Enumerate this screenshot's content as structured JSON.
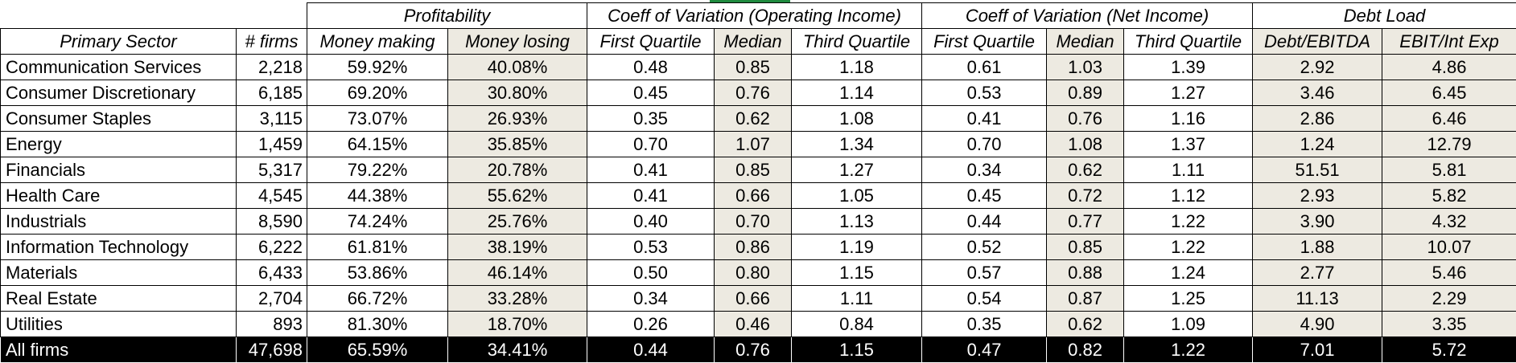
{
  "groups": {
    "profitability": "Profitability",
    "cov_operating": "Coeff of Variation (Operating Income)",
    "cov_net": "Coeff of Variation (Net Income)",
    "debt": "Debt Load"
  },
  "headers": {
    "sector": "Primary Sector",
    "firms": "# firms",
    "money_making": "Money making",
    "money_losing": "Money losing",
    "oi_q1": "First Quartile",
    "oi_median": "Median",
    "oi_q3": "Third Quartile",
    "ni_q1": "First Quartile",
    "ni_median": "Median",
    "ni_q3": "Third Quartile",
    "debt_ebitda": "Debt/EBITDA",
    "ebit_int": "EBIT/Int Exp"
  },
  "rows": [
    {
      "sector": "Communication Services",
      "firms": "2,218",
      "making": "59.92%",
      "losing": "40.08%",
      "oi_q1": "0.48",
      "oi_med": "0.85",
      "oi_q3": "1.18",
      "ni_q1": "0.61",
      "ni_med": "1.03",
      "ni_q3": "1.39",
      "debt_ebitda": "2.92",
      "ebit_int": "4.86"
    },
    {
      "sector": "Consumer Discretionary",
      "firms": "6,185",
      "making": "69.20%",
      "losing": "30.80%",
      "oi_q1": "0.45",
      "oi_med": "0.76",
      "oi_q3": "1.14",
      "ni_q1": "0.53",
      "ni_med": "0.89",
      "ni_q3": "1.27",
      "debt_ebitda": "3.46",
      "ebit_int": "6.45"
    },
    {
      "sector": "Consumer Staples",
      "firms": "3,115",
      "making": "73.07%",
      "losing": "26.93%",
      "oi_q1": "0.35",
      "oi_med": "0.62",
      "oi_q3": "1.08",
      "ni_q1": "0.41",
      "ni_med": "0.76",
      "ni_q3": "1.16",
      "debt_ebitda": "2.86",
      "ebit_int": "6.46"
    },
    {
      "sector": "Energy",
      "firms": "1,459",
      "making": "64.15%",
      "losing": "35.85%",
      "oi_q1": "0.70",
      "oi_med": "1.07",
      "oi_q3": "1.34",
      "ni_q1": "0.70",
      "ni_med": "1.08",
      "ni_q3": "1.37",
      "debt_ebitda": "1.24",
      "ebit_int": "12.79"
    },
    {
      "sector": "Financials",
      "firms": "5,317",
      "making": "79.22%",
      "losing": "20.78%",
      "oi_q1": "0.41",
      "oi_med": "0.85",
      "oi_q3": "1.27",
      "ni_q1": "0.34",
      "ni_med": "0.62",
      "ni_q3": "1.11",
      "debt_ebitda": "51.51",
      "ebit_int": "5.81"
    },
    {
      "sector": "Health Care",
      "firms": "4,545",
      "making": "44.38%",
      "losing": "55.62%",
      "oi_q1": "0.41",
      "oi_med": "0.66",
      "oi_q3": "1.05",
      "ni_q1": "0.45",
      "ni_med": "0.72",
      "ni_q3": "1.12",
      "debt_ebitda": "2.93",
      "ebit_int": "5.82"
    },
    {
      "sector": "Industrials",
      "firms": "8,590",
      "making": "74.24%",
      "losing": "25.76%",
      "oi_q1": "0.40",
      "oi_med": "0.70",
      "oi_q3": "1.13",
      "ni_q1": "0.44",
      "ni_med": "0.77",
      "ni_q3": "1.22",
      "debt_ebitda": "3.90",
      "ebit_int": "4.32"
    },
    {
      "sector": "Information Technology",
      "firms": "6,222",
      "making": "61.81%",
      "losing": "38.19%",
      "oi_q1": "0.53",
      "oi_med": "0.86",
      "oi_q3": "1.19",
      "ni_q1": "0.52",
      "ni_med": "0.85",
      "ni_q3": "1.22",
      "debt_ebitda": "1.88",
      "ebit_int": "10.07"
    },
    {
      "sector": "Materials",
      "firms": "6,433",
      "making": "53.86%",
      "losing": "46.14%",
      "oi_q1": "0.50",
      "oi_med": "0.80",
      "oi_q3": "1.15",
      "ni_q1": "0.57",
      "ni_med": "0.88",
      "ni_q3": "1.24",
      "debt_ebitda": "2.77",
      "ebit_int": "5.46"
    },
    {
      "sector": "Real Estate",
      "firms": "2,704",
      "making": "66.72%",
      "losing": "33.28%",
      "oi_q1": "0.34",
      "oi_med": "0.66",
      "oi_q3": "1.11",
      "ni_q1": "0.54",
      "ni_med": "0.87",
      "ni_q3": "1.25",
      "debt_ebitda": "11.13",
      "ebit_int": "2.29"
    },
    {
      "sector": "Utilities",
      "firms": "893",
      "making": "81.30%",
      "losing": "18.70%",
      "oi_q1": "0.26",
      "oi_med": "0.46",
      "oi_q3": "0.84",
      "ni_q1": "0.35",
      "ni_med": "0.62",
      "ni_q3": "1.09",
      "debt_ebitda": "4.90",
      "ebit_int": "3.35"
    }
  ],
  "total": {
    "sector": "All firms",
    "firms": "47,698",
    "making": "65.59%",
    "losing": "34.41%",
    "oi_q1": "0.44",
    "oi_med": "0.76",
    "oi_q3": "1.15",
    "ni_q1": "0.47",
    "ni_med": "0.82",
    "ni_q3": "1.22",
    "debt_ebitda": "7.01",
    "ebit_int": "5.72"
  },
  "colors": {
    "shade": "#edeae1",
    "total_bg": "#000000",
    "accent": "#1f8a3e"
  }
}
